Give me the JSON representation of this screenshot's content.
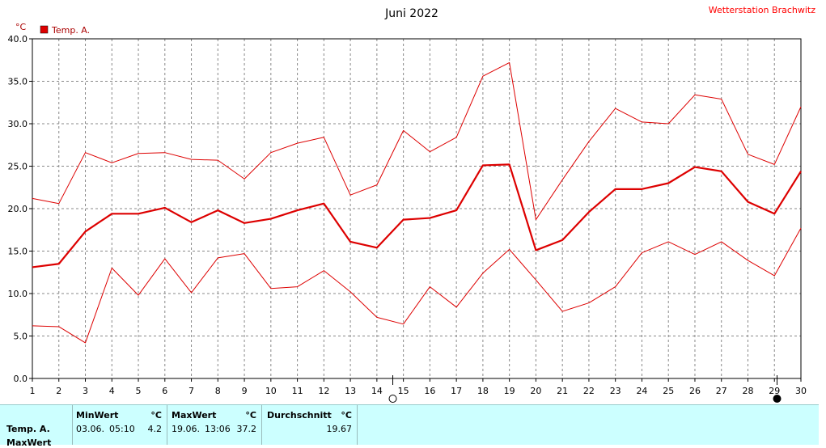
{
  "title": "Juni 2022",
  "station": "Wetterstation Brachwitz",
  "unit": "°C",
  "colors": {
    "line": "#dd0000",
    "grid": "#888888",
    "panel": "#ccffff"
  },
  "chart_data": {
    "type": "line",
    "title": "Juni 2022",
    "ylabel": "°C",
    "xlim": [
      1,
      30
    ],
    "ylim": [
      0,
      40
    ],
    "yticks": [
      "0.0",
      "5.0",
      "10.0",
      "15.0",
      "20.0",
      "25.0",
      "30.0",
      "35.0",
      "40.0"
    ],
    "xticks": [
      "1",
      "2",
      "3",
      "4",
      "5",
      "6",
      "7",
      "8",
      "9",
      "10",
      "11",
      "12",
      "13",
      "14",
      "15",
      "16",
      "17",
      "18",
      "19",
      "20",
      "21",
      "22",
      "23",
      "24",
      "25",
      "26",
      "27",
      "28",
      "29",
      "30"
    ],
    "grid": true,
    "legend": "top-left",
    "moon_phases": [
      {
        "day": 14.6,
        "phase": "full"
      },
      {
        "day": 29.1,
        "phase": "new"
      }
    ],
    "series": [
      {
        "name": "Temp. A.",
        "role": "avg",
        "values": [
          13.1,
          13.5,
          17.3,
          19.4,
          19.4,
          20.1,
          18.4,
          19.8,
          18.3,
          18.8,
          19.8,
          20.6,
          16.1,
          15.4,
          18.7,
          18.9,
          19.8,
          25.1,
          25.2,
          15.1,
          16.3,
          19.6,
          22.3,
          22.3,
          23.0,
          24.9,
          24.4,
          20.8,
          19.4,
          24.4
        ]
      },
      {
        "role": "max",
        "values": [
          21.2,
          20.6,
          26.6,
          25.4,
          26.5,
          26.6,
          25.8,
          25.7,
          23.5,
          26.6,
          27.7,
          28.4,
          21.6,
          22.8,
          29.2,
          26.7,
          28.4,
          35.6,
          37.2,
          18.7,
          23.4,
          27.9,
          31.8,
          30.2,
          30.0,
          33.4,
          32.9,
          26.4,
          25.2,
          32.0
        ]
      },
      {
        "role": "min",
        "values": [
          6.2,
          6.1,
          4.2,
          13.0,
          9.8,
          14.1,
          10.1,
          14.2,
          14.7,
          10.6,
          10.8,
          12.7,
          10.2,
          7.2,
          6.4,
          10.8,
          8.4,
          12.4,
          15.2,
          11.6,
          7.9,
          8.9,
          10.8,
          14.8,
          16.1,
          14.6,
          16.1,
          13.9,
          12.1,
          17.7
        ]
      }
    ]
  },
  "stats": {
    "row_label": "Temp. A.",
    "row_label_2": "MaxWert",
    "min": {
      "header": "MinWert",
      "unit": "°C",
      "date": "03.06.",
      "time": "05:10",
      "value": "4.2"
    },
    "max": {
      "header": "MaxWert",
      "unit": "°C",
      "date": "19.06.",
      "time": "13:06",
      "value": "37.2"
    },
    "avg": {
      "header": "Durchschnitt",
      "unit": "°C",
      "value": "19.67"
    }
  }
}
